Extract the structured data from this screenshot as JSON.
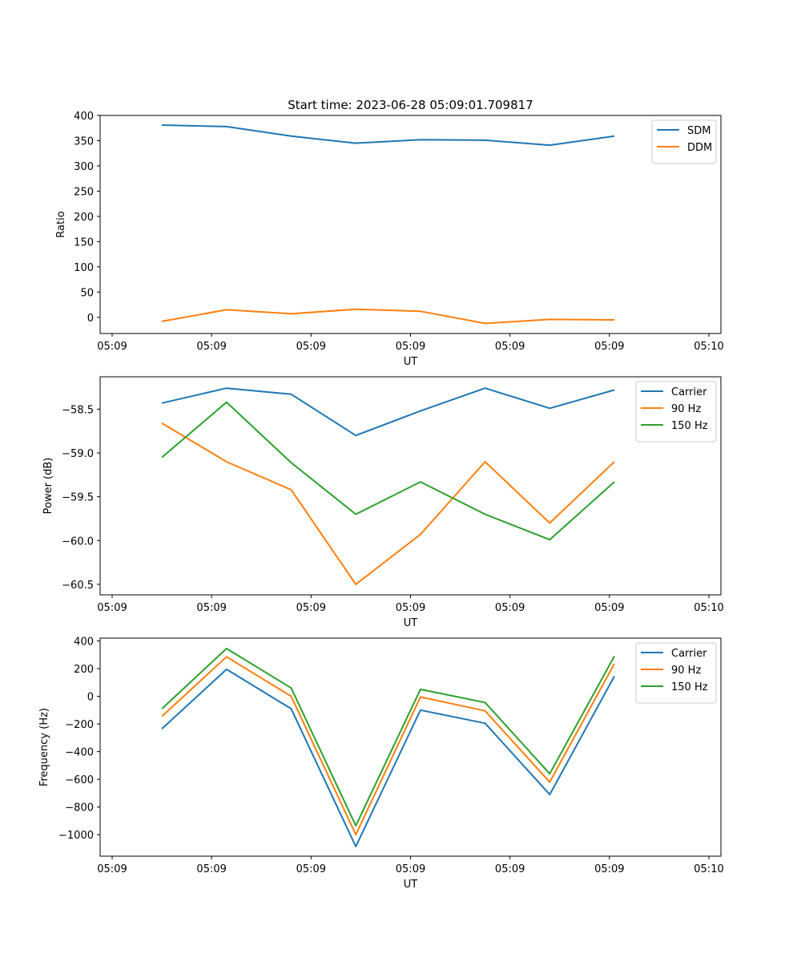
{
  "figure_title": "Start time: 2023-06-28 05:09:01.709817",
  "colors": {
    "blue": "#1f77b4",
    "orange": "#ff7f0e",
    "green": "#2ca02c",
    "axis": "#000000",
    "legend_border": "#cccccc"
  },
  "chart_data": [
    {
      "type": "line",
      "title": "Start time: 2023-06-28 05:09:01.709817",
      "xlabel": "UT",
      "ylabel": "Ratio",
      "x_tick_labels": [
        "05:09",
        "05:09",
        "05:09",
        "05:09",
        "05:09",
        "05:09",
        "05:10"
      ],
      "xlim": [
        0,
        6
      ],
      "x": [
        0.5,
        1.15,
        1.8,
        2.45,
        3.1,
        3.75,
        4.4,
        5.05
      ],
      "ylim": [
        -32,
        400
      ],
      "y_ticks": [
        0,
        50,
        100,
        150,
        200,
        250,
        300,
        350,
        400
      ],
      "grid": false,
      "legend": "top-right",
      "series": [
        {
          "name": "SDM",
          "color": "#1f77b4",
          "values": [
            381,
            378,
            359,
            345,
            352,
            351,
            341,
            359
          ]
        },
        {
          "name": "DDM",
          "color": "#ff7f0e",
          "values": [
            -8,
            15,
            7,
            16,
            12,
            -12,
            -4,
            -5
          ]
        }
      ]
    },
    {
      "type": "line",
      "title": "",
      "xlabel": "UT",
      "ylabel": "Power (dB)",
      "x_tick_labels": [
        "05:09",
        "05:09",
        "05:09",
        "05:09",
        "05:09",
        "05:09",
        "05:10"
      ],
      "xlim": [
        0,
        6
      ],
      "x": [
        0.5,
        1.15,
        1.8,
        2.45,
        3.1,
        3.75,
        4.4,
        5.05
      ],
      "ylim": [
        -60.62,
        -58.13
      ],
      "y_ticks": [
        -60.5,
        -60.0,
        -59.5,
        -59.0,
        -58.5
      ],
      "y_tick_labels": [
        "−60.5",
        "−60.0",
        "−59.5",
        "−59.0",
        "−58.5"
      ],
      "grid": false,
      "legend": "top-right",
      "series": [
        {
          "name": "Carrier",
          "color": "#1f77b4",
          "values": [
            -58.43,
            -58.26,
            -58.33,
            -58.8,
            -58.52,
            -58.26,
            -58.49,
            -58.28
          ]
        },
        {
          "name": "90 Hz",
          "color": "#ff7f0e",
          "values": [
            -58.66,
            -59.1,
            -59.42,
            -60.5,
            -59.93,
            -59.1,
            -59.8,
            -59.1
          ]
        },
        {
          "name": "150 Hz",
          "color": "#2ca02c",
          "values": [
            -59.05,
            -58.42,
            -59.11,
            -59.7,
            -59.33,
            -59.7,
            -59.99,
            -59.33
          ]
        }
      ]
    },
    {
      "type": "line",
      "title": "",
      "xlabel": "UT",
      "ylabel": "Frequency (Hz)",
      "x_tick_labels": [
        "05:09",
        "05:09",
        "05:09",
        "05:09",
        "05:09",
        "05:09",
        "05:10"
      ],
      "xlim": [
        0,
        6
      ],
      "x": [
        0.5,
        1.15,
        1.8,
        2.45,
        3.1,
        3.75,
        4.4,
        5.05
      ],
      "ylim": [
        -1155,
        420
      ],
      "y_ticks": [
        -1000,
        -800,
        -600,
        -400,
        -200,
        0,
        200,
        400
      ],
      "y_tick_labels": [
        "−1000",
        "−800",
        "−600",
        "−400",
        "−200",
        "0",
        "200",
        "400"
      ],
      "grid": false,
      "legend": "top-right",
      "series": [
        {
          "name": "Carrier",
          "color": "#1f77b4",
          "values": [
            -235,
            195,
            -90,
            -1085,
            -100,
            -195,
            -710,
            145
          ]
        },
        {
          "name": "90 Hz",
          "color": "#ff7f0e",
          "values": [
            -145,
            285,
            0,
            -1000,
            -5,
            -105,
            -620,
            235
          ]
        },
        {
          "name": "150 Hz",
          "color": "#2ca02c",
          "values": [
            -90,
            345,
            60,
            -935,
            50,
            -45,
            -560,
            290
          ]
        }
      ]
    }
  ]
}
